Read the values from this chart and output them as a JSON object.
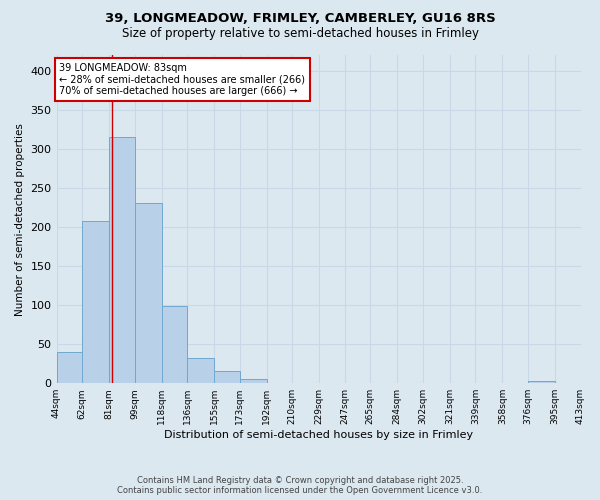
{
  "title_line1": "39, LONGMEADOW, FRIMLEY, CAMBERLEY, GU16 8RS",
  "title_line2": "Size of property relative to semi-detached houses in Frimley",
  "xlabel": "Distribution of semi-detached houses by size in Frimley",
  "ylabel": "Number of semi-detached properties",
  "bin_labels": [
    "44sqm",
    "62sqm",
    "81sqm",
    "99sqm",
    "118sqm",
    "136sqm",
    "155sqm",
    "173sqm",
    "192sqm",
    "210sqm",
    "229sqm",
    "247sqm",
    "265sqm",
    "284sqm",
    "302sqm",
    "321sqm",
    "339sqm",
    "358sqm",
    "376sqm",
    "395sqm",
    "413sqm"
  ],
  "bin_edges": [
    44,
    62,
    81,
    99,
    118,
    136,
    155,
    173,
    192,
    210,
    229,
    247,
    265,
    284,
    302,
    321,
    339,
    358,
    376,
    395,
    413
  ],
  "bar_heights": [
    40,
    207,
    315,
    230,
    99,
    32,
    16,
    5,
    0,
    0,
    0,
    0,
    0,
    0,
    0,
    0,
    0,
    0,
    3,
    0,
    0
  ],
  "bar_color": "#b8d0e8",
  "bar_edge_color": "#6fa8d0",
  "property_size": 83,
  "property_label": "39 LONGMEADOW: 83sqm",
  "pct_smaller": 28,
  "pct_larger": 70,
  "n_smaller": 266,
  "n_larger": 666,
  "vline_color": "#cc0000",
  "annotation_box_edge": "#cc0000",
  "ylim": [
    0,
    420
  ],
  "yticks": [
    0,
    50,
    100,
    150,
    200,
    250,
    300,
    350,
    400
  ],
  "grid_color": "#c8d8e8",
  "background_color": "#dce8f0",
  "footer_line1": "Contains HM Land Registry data © Crown copyright and database right 2025.",
  "footer_line2": "Contains public sector information licensed under the Open Government Licence v3.0."
}
